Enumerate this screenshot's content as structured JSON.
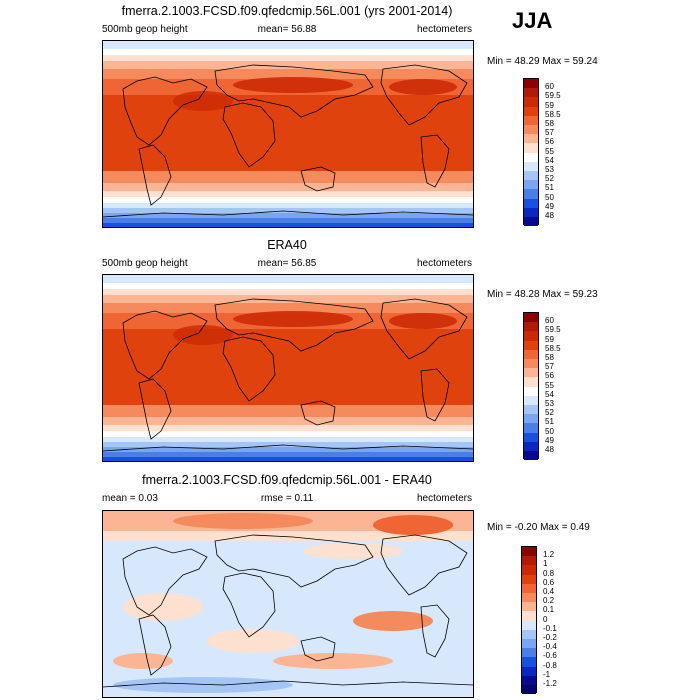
{
  "header": {
    "season": "JJA"
  },
  "chart_data": [
    {
      "type": "heatmap",
      "title": "fmerra.2.1003.FCSD.f09.qfedcmip.56L.001 (yrs 2001-2014)",
      "left_label": "500mb geop height",
      "center_label": "mean=  56.88",
      "right_label": "hectometers",
      "minmax_label": "Min =  48.29 Max =  59.24",
      "min": 48.29,
      "max": 59.24,
      "mean": 56.88,
      "colorbar": {
        "labels": [
          "60",
          "59.5",
          "59",
          "58.5",
          "58",
          "57",
          "56",
          "55",
          "54",
          "53",
          "52",
          "51",
          "50",
          "49",
          "48"
        ],
        "colors": [
          "#8b0000",
          "#b01a08",
          "#cc2a05",
          "#e0420e",
          "#ef6533",
          "#f58a5c",
          "#fbb595",
          "#fde0cf",
          "#ffffff",
          "#d8e8fc",
          "#a5c5f7",
          "#7aa5f0",
          "#4b7fe8",
          "#1a50e0",
          "#0a28c0",
          "#0a0a90"
        ]
      }
    },
    {
      "type": "heatmap",
      "title": "ERA40",
      "left_label": "500mb geop height",
      "center_label": "mean=  56.85",
      "right_label": "hectometers",
      "minmax_label": "Min =  48.28 Max =  59.23",
      "min": 48.28,
      "max": 59.23,
      "mean": 56.85,
      "colorbar": {
        "labels": [
          "60",
          "59.5",
          "59",
          "58.5",
          "58",
          "57",
          "56",
          "55",
          "54",
          "53",
          "52",
          "51",
          "50",
          "49",
          "48"
        ],
        "colors": [
          "#8b0000",
          "#b01a08",
          "#cc2a05",
          "#e0420e",
          "#ef6533",
          "#f58a5c",
          "#fbb595",
          "#fde0cf",
          "#ffffff",
          "#d8e8fc",
          "#a5c5f7",
          "#7aa5f0",
          "#4b7fe8",
          "#1a50e0",
          "#0a28c0",
          "#0a0a90"
        ]
      }
    },
    {
      "type": "heatmap",
      "title": "fmerra.2.1003.FCSD.f09.qfedcmip.56L.001 - ERA40",
      "left_label": "mean =   0.03",
      "center_label": "rmse =   0.11",
      "right_label": "hectometers",
      "minmax_label": "Min =  -0.20 Max =   0.49",
      "min": -0.2,
      "max": 0.49,
      "mean": 0.03,
      "rmse": 0.11,
      "colorbar": {
        "labels": [
          "1.2",
          "1",
          "0.8",
          "0.6",
          "0.4",
          "0.2",
          "0.1",
          "0",
          "-0.1",
          "-0.2",
          "-0.4",
          "-0.6",
          "-0.8",
          "-1",
          "-1.2"
        ],
        "colors": [
          "#8b0000",
          "#b01a08",
          "#cc2a05",
          "#e0420e",
          "#ef6533",
          "#f58a5c",
          "#fbb595",
          "#fde0cf",
          "#d8e8fc",
          "#a5c5f7",
          "#7aa5f0",
          "#4b7fe8",
          "#1a50e0",
          "#0a28c0",
          "#0a0a90",
          "#05056a"
        ]
      }
    }
  ]
}
